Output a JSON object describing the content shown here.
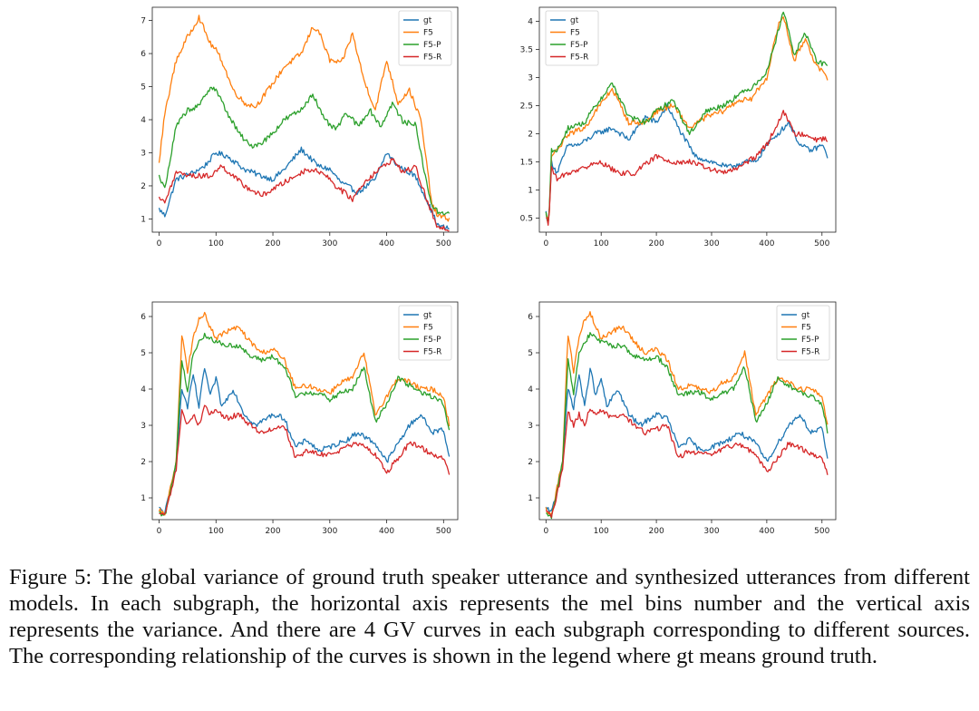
{
  "series_names": [
    "gt",
    "F5",
    "F5-P",
    "F5-R"
  ],
  "colors": {
    "gt": "#1f77b4",
    "F5": "#ff7f0e",
    "F5-P": "#2ca02c",
    "F5-R": "#d62728"
  },
  "caption": "Figure 5: The global variance of ground truth speaker utterance and synthesized utterances from different models. In each subgraph, the horizontal axis represents the mel bins number and the vertical axis represents the variance. And there are 4 GV curves in each subgraph corresponding to different sources. The corresponding relationship of the curves is shown in the legend where gt means ground truth.",
  "chart_data": [
    {
      "type": "line",
      "title": "",
      "xlabel": "",
      "ylabel": "",
      "xlim": [
        -12,
        525
      ],
      "ylim": [
        0.6,
        7.4
      ],
      "xticks": [
        0,
        100,
        200,
        300,
        400,
        500
      ],
      "yticks": [
        1,
        2,
        3,
        4,
        5,
        6,
        7
      ],
      "legend": "top-right",
      "series": [
        {
          "name": "gt",
          "x": [
            0,
            10,
            30,
            60,
            80,
            100,
            120,
            150,
            180,
            200,
            220,
            250,
            280,
            300,
            320,
            350,
            380,
            400,
            420,
            450,
            470,
            490,
            510
          ],
          "values": [
            1.3,
            1.1,
            2.2,
            2.4,
            2.6,
            3.0,
            2.9,
            2.5,
            2.3,
            2.2,
            2.5,
            3.1,
            2.6,
            2.5,
            2.1,
            1.8,
            2.2,
            3.0,
            2.6,
            2.3,
            1.6,
            0.8,
            0.7
          ]
        },
        {
          "name": "F5",
          "x": [
            0,
            10,
            30,
            50,
            70,
            90,
            100,
            110,
            130,
            150,
            170,
            200,
            220,
            250,
            270,
            280,
            300,
            320,
            340,
            360,
            380,
            400,
            420,
            440,
            460,
            480,
            490,
            510
          ],
          "values": [
            2.7,
            4.2,
            5.8,
            6.5,
            7.1,
            6.3,
            6.1,
            5.8,
            4.9,
            4.5,
            4.4,
            5.1,
            5.6,
            6.0,
            6.8,
            6.7,
            5.8,
            5.7,
            6.6,
            5.2,
            4.3,
            5.8,
            4.5,
            4.9,
            4.0,
            1.4,
            1.1,
            1.0
          ]
        },
        {
          "name": "F5-P",
          "x": [
            0,
            10,
            30,
            50,
            70,
            90,
            100,
            120,
            140,
            160,
            180,
            200,
            220,
            250,
            270,
            290,
            310,
            330,
            350,
            370,
            390,
            410,
            430,
            450,
            470,
            480,
            490,
            510
          ],
          "values": [
            2.3,
            1.9,
            3.8,
            4.3,
            4.4,
            5.0,
            4.9,
            4.2,
            3.6,
            3.2,
            3.3,
            3.6,
            4.0,
            4.3,
            4.8,
            4.0,
            3.7,
            4.2,
            3.8,
            4.3,
            3.8,
            4.5,
            3.9,
            3.9,
            2.1,
            1.4,
            1.2,
            1.2
          ]
        },
        {
          "name": "F5-R",
          "x": [
            0,
            10,
            30,
            60,
            90,
            110,
            150,
            180,
            200,
            230,
            260,
            290,
            310,
            340,
            360,
            380,
            410,
            430,
            450,
            470,
            490,
            510
          ],
          "values": [
            1.6,
            1.5,
            2.4,
            2.3,
            2.3,
            2.6,
            2.0,
            1.7,
            1.9,
            2.2,
            2.5,
            2.4,
            2.0,
            1.6,
            2.1,
            2.4,
            2.8,
            2.4,
            2.6,
            1.6,
            0.7,
            0.7
          ]
        }
      ]
    },
    {
      "type": "line",
      "title": "",
      "xlabel": "",
      "ylabel": "",
      "xlim": [
        -12,
        525
      ],
      "ylim": [
        0.25,
        4.25
      ],
      "xticks": [
        0,
        100,
        200,
        300,
        400,
        500
      ],
      "yticks": [
        0.5,
        1.0,
        1.5,
        2.0,
        2.5,
        3.0,
        3.5,
        4.0
      ],
      "legend": "top-left",
      "series": [
        {
          "name": "gt",
          "x": [
            0,
            5,
            10,
            20,
            40,
            60,
            90,
            120,
            150,
            180,
            200,
            220,
            240,
            270,
            300,
            330,
            360,
            380,
            400,
            420,
            440,
            460,
            480,
            500,
            510
          ],
          "values": [
            0.6,
            0.4,
            1.5,
            1.3,
            1.8,
            1.8,
            2.0,
            2.1,
            1.9,
            2.3,
            2.2,
            2.5,
            2.1,
            1.6,
            1.5,
            1.4,
            1.5,
            1.5,
            1.8,
            2.0,
            2.2,
            1.8,
            1.7,
            1.8,
            1.6
          ]
        },
        {
          "name": "F5",
          "x": [
            0,
            5,
            10,
            20,
            40,
            70,
            90,
            120,
            150,
            180,
            200,
            230,
            260,
            290,
            320,
            350,
            370,
            400,
            420,
            430,
            450,
            470,
            490,
            510
          ],
          "values": [
            0.6,
            0.4,
            1.6,
            1.7,
            2.0,
            2.1,
            2.4,
            2.8,
            2.2,
            2.2,
            2.4,
            2.5,
            2.1,
            2.3,
            2.4,
            2.6,
            2.6,
            3.0,
            3.9,
            4.1,
            3.3,
            3.7,
            3.2,
            3.0
          ]
        },
        {
          "name": "F5-P",
          "x": [
            0,
            5,
            10,
            20,
            40,
            70,
            90,
            120,
            150,
            180,
            200,
            230,
            260,
            290,
            320,
            350,
            370,
            400,
            420,
            430,
            450,
            470,
            490,
            510
          ],
          "values": [
            0.6,
            0.4,
            1.7,
            1.7,
            2.1,
            2.2,
            2.5,
            2.9,
            2.3,
            2.2,
            2.4,
            2.6,
            2.0,
            2.4,
            2.5,
            2.7,
            2.8,
            3.1,
            3.8,
            4.2,
            3.4,
            3.8,
            3.3,
            3.2
          ]
        },
        {
          "name": "F5-R",
          "x": [
            0,
            5,
            10,
            20,
            40,
            70,
            100,
            130,
            160,
            200,
            230,
            260,
            290,
            320,
            350,
            380,
            400,
            420,
            430,
            450,
            470,
            490,
            510
          ],
          "values": [
            0.5,
            0.4,
            1.4,
            1.2,
            1.3,
            1.4,
            1.5,
            1.3,
            1.3,
            1.6,
            1.5,
            1.5,
            1.4,
            1.3,
            1.4,
            1.6,
            1.8,
            2.2,
            2.4,
            2.0,
            2.0,
            1.9,
            1.9
          ]
        }
      ]
    },
    {
      "type": "line",
      "title": "",
      "xlabel": "",
      "ylabel": "",
      "xlim": [
        -12,
        525
      ],
      "ylim": [
        0.4,
        6.4
      ],
      "xticks": [
        0,
        100,
        200,
        300,
        400,
        500
      ],
      "yticks": [
        1,
        2,
        3,
        4,
        5,
        6
      ],
      "legend": "top-right",
      "series": [
        {
          "name": "gt",
          "x": [
            0,
            10,
            20,
            30,
            40,
            50,
            60,
            70,
            80,
            90,
            100,
            110,
            130,
            150,
            170,
            200,
            220,
            240,
            260,
            280,
            300,
            330,
            350,
            360,
            380,
            400,
            420,
            440,
            460,
            480,
            500,
            510
          ],
          "values": [
            0.7,
            0.6,
            1.2,
            2.0,
            4.0,
            3.5,
            4.4,
            3.5,
            4.6,
            3.8,
            4.3,
            3.5,
            4.0,
            3.3,
            3.0,
            3.3,
            3.2,
            2.4,
            2.6,
            2.3,
            2.4,
            2.6,
            2.8,
            2.7,
            2.5,
            2.0,
            2.5,
            3.0,
            3.3,
            2.8,
            2.9,
            2.1
          ]
        },
        {
          "name": "F5",
          "x": [
            0,
            10,
            20,
            30,
            40,
            50,
            60,
            70,
            80,
            90,
            100,
            120,
            140,
            160,
            180,
            200,
            220,
            240,
            260,
            280,
            300,
            320,
            340,
            360,
            380,
            400,
            420,
            440,
            460,
            480,
            500,
            510
          ],
          "values": [
            0.7,
            0.5,
            1.3,
            2.0,
            5.5,
            4.5,
            5.4,
            5.9,
            6.1,
            5.7,
            5.4,
            5.6,
            5.7,
            5.3,
            5.0,
            5.1,
            4.8,
            4.0,
            4.1,
            4.0,
            3.9,
            4.2,
            4.3,
            5.0,
            3.3,
            3.8,
            4.3,
            4.2,
            4.0,
            4.0,
            3.8,
            3.0
          ]
        },
        {
          "name": "F5-P",
          "x": [
            0,
            10,
            20,
            30,
            40,
            50,
            60,
            70,
            80,
            90,
            100,
            120,
            140,
            160,
            180,
            200,
            220,
            240,
            260,
            280,
            300,
            320,
            340,
            360,
            380,
            400,
            420,
            440,
            460,
            480,
            500,
            510
          ],
          "values": [
            0.6,
            0.5,
            1.2,
            2.0,
            4.8,
            3.9,
            5.0,
            5.3,
            5.5,
            5.4,
            5.3,
            5.2,
            5.2,
            4.9,
            4.8,
            4.9,
            4.6,
            3.8,
            3.9,
            3.9,
            3.7,
            3.9,
            4.0,
            4.6,
            3.1,
            3.6,
            4.3,
            4.1,
            3.9,
            3.8,
            3.6,
            2.8
          ]
        },
        {
          "name": "F5-R",
          "x": [
            0,
            10,
            20,
            30,
            40,
            50,
            60,
            70,
            80,
            90,
            100,
            120,
            140,
            160,
            180,
            200,
            220,
            240,
            260,
            280,
            300,
            330,
            350,
            360,
            380,
            400,
            420,
            440,
            460,
            480,
            500,
            510
          ],
          "values": [
            0.6,
            0.5,
            1.1,
            1.8,
            3.4,
            3.0,
            3.3,
            3.0,
            3.5,
            3.3,
            3.4,
            3.2,
            3.3,
            3.0,
            2.8,
            2.9,
            3.0,
            2.1,
            2.3,
            2.2,
            2.2,
            2.4,
            2.5,
            2.4,
            2.2,
            1.7,
            2.1,
            2.5,
            2.4,
            2.2,
            2.1,
            1.7
          ]
        }
      ]
    },
    {
      "type": "line",
      "title": "",
      "xlabel": "",
      "ylabel": "",
      "xlim": [
        -12,
        525
      ],
      "ylim": [
        0.4,
        6.4
      ],
      "xticks": [
        0,
        100,
        200,
        300,
        400,
        500
      ],
      "yticks": [
        1,
        2,
        3,
        4,
        5,
        6
      ],
      "legend": "top-right",
      "series": [
        {
          "name": "gt",
          "x": [
            0,
            10,
            20,
            30,
            40,
            50,
            60,
            70,
            80,
            90,
            100,
            110,
            130,
            150,
            170,
            200,
            220,
            240,
            260,
            280,
            300,
            330,
            350,
            360,
            380,
            400,
            420,
            440,
            460,
            480,
            500,
            510
          ],
          "values": [
            0.7,
            0.6,
            1.2,
            2.0,
            4.0,
            3.5,
            4.4,
            3.5,
            4.6,
            3.8,
            4.3,
            3.5,
            4.0,
            3.3,
            3.0,
            3.3,
            3.2,
            2.4,
            2.6,
            2.3,
            2.4,
            2.6,
            2.8,
            2.7,
            2.5,
            2.0,
            2.5,
            3.0,
            3.3,
            2.8,
            2.9,
            2.1
          ]
        },
        {
          "name": "F5",
          "x": [
            0,
            10,
            20,
            30,
            40,
            50,
            60,
            70,
            80,
            90,
            100,
            120,
            140,
            160,
            180,
            200,
            220,
            240,
            260,
            280,
            300,
            320,
            340,
            360,
            380,
            400,
            420,
            440,
            460,
            480,
            500,
            510
          ],
          "values": [
            0.7,
            0.5,
            1.3,
            2.0,
            5.5,
            4.5,
            5.4,
            5.9,
            6.1,
            5.7,
            5.4,
            5.6,
            5.7,
            5.3,
            5.0,
            5.1,
            4.8,
            4.0,
            4.1,
            4.0,
            3.9,
            4.2,
            4.3,
            5.0,
            3.3,
            3.8,
            4.3,
            4.2,
            4.0,
            4.0,
            3.8,
            3.0
          ]
        },
        {
          "name": "F5-P",
          "x": [
            0,
            10,
            20,
            30,
            40,
            50,
            60,
            70,
            80,
            90,
            100,
            120,
            140,
            160,
            180,
            200,
            220,
            240,
            260,
            280,
            300,
            320,
            340,
            360,
            380,
            400,
            420,
            440,
            460,
            480,
            500,
            510
          ],
          "values": [
            0.6,
            0.5,
            1.2,
            2.0,
            4.8,
            3.9,
            5.0,
            5.3,
            5.5,
            5.4,
            5.3,
            5.2,
            5.2,
            4.9,
            4.8,
            4.9,
            4.6,
            3.8,
            3.9,
            3.9,
            3.7,
            3.9,
            4.0,
            4.6,
            3.1,
            3.6,
            4.3,
            4.1,
            3.9,
            3.8,
            3.6,
            2.8
          ]
        },
        {
          "name": "F5-R",
          "x": [
            0,
            10,
            20,
            30,
            40,
            50,
            60,
            70,
            80,
            90,
            100,
            120,
            140,
            160,
            180,
            200,
            220,
            240,
            260,
            280,
            300,
            330,
            350,
            360,
            380,
            400,
            420,
            440,
            460,
            480,
            500,
            510
          ],
          "values": [
            0.6,
            0.5,
            1.1,
            1.8,
            3.4,
            3.0,
            3.3,
            3.0,
            3.5,
            3.3,
            3.4,
            3.2,
            3.3,
            3.0,
            2.8,
            2.9,
            3.0,
            2.1,
            2.3,
            2.2,
            2.2,
            2.4,
            2.5,
            2.4,
            2.2,
            1.7,
            2.1,
            2.5,
            2.4,
            2.2,
            2.1,
            1.7
          ]
        }
      ]
    }
  ]
}
